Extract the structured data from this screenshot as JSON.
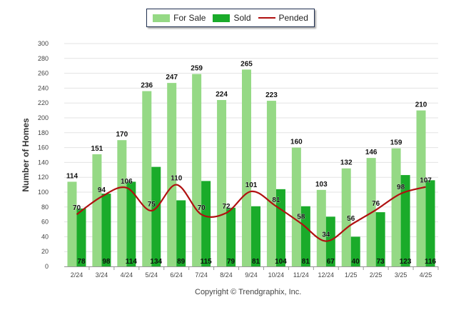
{
  "chart_data": {
    "type": "bar",
    "categories": [
      "2/24",
      "3/24",
      "4/24",
      "5/24",
      "6/24",
      "7/24",
      "8/24",
      "9/24",
      "10/24",
      "11/24",
      "12/24",
      "1/25",
      "2/25",
      "3/25",
      "4/25"
    ],
    "series": [
      {
        "name": "For Sale",
        "kind": "bar",
        "color": "#95d985",
        "values": [
          114,
          151,
          170,
          236,
          247,
          259,
          224,
          265,
          223,
          160,
          103,
          132,
          146,
          159,
          210
        ]
      },
      {
        "name": "Sold",
        "kind": "bar",
        "color": "#1aab2a",
        "values": [
          78,
          98,
          114,
          134,
          89,
          115,
          79,
          81,
          104,
          81,
          67,
          40,
          73,
          123,
          116
        ]
      },
      {
        "name": "Pended",
        "kind": "line",
        "color": "#b01010",
        "values": [
          70,
          94,
          106,
          75,
          110,
          70,
          72,
          101,
          81,
          58,
          34,
          56,
          76,
          98,
          107
        ]
      }
    ],
    "ylabel": "Number of Homes",
    "xlabel": "",
    "ylim": [
      0,
      300
    ],
    "yticks": [
      0,
      20,
      40,
      60,
      80,
      100,
      120,
      140,
      160,
      180,
      200,
      220,
      240,
      260,
      280,
      300
    ],
    "grid": true,
    "legend": "top-center"
  },
  "footer": {
    "copyright": "Copyright © Trendgraphix, Inc."
  }
}
